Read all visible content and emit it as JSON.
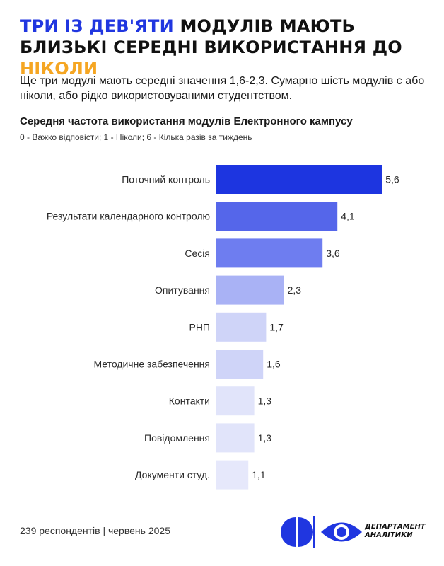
{
  "headline": {
    "part1": "ТРИ ІЗ ДЕВ'ЯТИ",
    "part2": " МОДУЛІВ МАЮТЬ БЛИЗЬКІ СЕРЕДНІ ВИКОРИСТАННЯ ДО ",
    "part3": "НІКОЛИ"
  },
  "lead": "Ще три модулі мають середні значення 1,6-2,3. Сумарно шість модулів є або ніколи, або рідко використовуваними студентством.",
  "colors": {
    "accent_blue": "#2036e0",
    "accent_orange": "#f5a623",
    "bar_scale": [
      "#1d35e0",
      "#5566ea",
      "#6e7df0",
      "#a9b2f5",
      "#cfd4f8",
      "#cfd4f8",
      "#e1e4fa",
      "#e1e4fa",
      "#e6e8fb"
    ]
  },
  "chart_data": {
    "type": "bar",
    "orientation": "horizontal",
    "title": "Середня частота використання модулів Електронного кампусу",
    "subtitle": "0 - Важко відповісти; 1 - Ніколи; 6 - Кілька разів за тиждень",
    "categories": [
      "Поточний контроль",
      "Результати календарного контролю",
      "Сесія",
      "Опитування",
      "РНП",
      "Методичне забезпечення",
      "Контакти",
      "Повідомлення",
      "Документи студ."
    ],
    "values": [
      5.6,
      4.1,
      3.6,
      2.3,
      1.7,
      1.6,
      1.3,
      1.3,
      1.1
    ],
    "value_labels": [
      "5,6",
      "4,1",
      "3,6",
      "2,3",
      "1,7",
      "1,6",
      "1,3",
      "1,3",
      "1,1"
    ],
    "xlim": [
      0,
      6
    ],
    "grid": false,
    "legend": "none"
  },
  "footer": {
    "note": "239 респондентів | червень 2025",
    "logo_text_line1": "ДЕПАРТАМЕНТ",
    "logo_text_line2": "АНАЛІТИКИ"
  }
}
